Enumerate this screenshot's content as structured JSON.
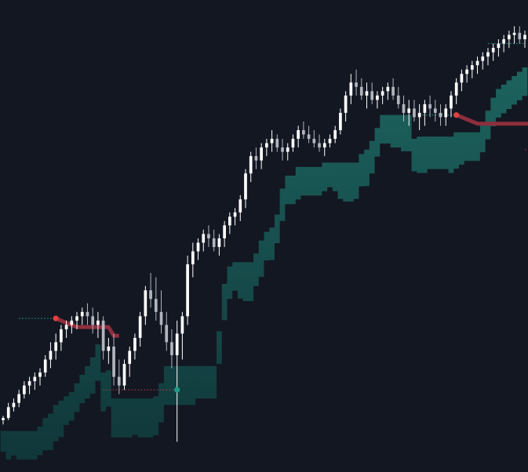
{
  "colors": {
    "background": "#131722",
    "candle_up": "#ffffff",
    "candle_down": "#b2b5be",
    "band_fill_top": "#1d6b64",
    "band_fill_bottom": "#103a3c",
    "resistance_line": "#8d2e3c",
    "resistance_dot": "#e0413f",
    "support_dot": "#1f9a86",
    "dotted_level": "#26a69a",
    "dotted_level_red": "#c2404a"
  },
  "chart_data": {
    "type": "candlestick",
    "title": "",
    "xlabel": "",
    "ylabel": "",
    "grid": false,
    "legend": "none",
    "ylim": [
      0,
      100
    ],
    "xlim": [
      0,
      139
    ],
    "candles": [
      [
        8,
        9,
        7,
        8.5
      ],
      [
        8.5,
        12,
        8,
        11
      ],
      [
        11,
        13,
        10,
        12
      ],
      [
        12,
        15,
        11,
        14
      ],
      [
        14,
        17,
        13,
        16
      ],
      [
        16,
        18,
        14,
        17
      ],
      [
        17,
        19,
        15,
        18
      ],
      [
        18,
        20,
        16,
        19
      ],
      [
        19,
        23,
        18,
        22
      ],
      [
        22,
        26,
        20,
        24
      ],
      [
        24,
        28,
        22,
        26
      ],
      [
        26,
        30,
        24,
        29
      ],
      [
        29,
        31,
        27,
        30
      ],
      [
        30,
        32,
        28,
        31
      ],
      [
        31,
        33,
        29,
        32
      ],
      [
        32,
        34,
        30,
        33
      ],
      [
        33,
        35,
        30,
        32
      ],
      [
        32,
        34,
        28,
        30
      ],
      [
        30,
        33,
        27,
        31
      ],
      [
        31,
        32,
        22,
        24
      ],
      [
        24,
        27,
        21,
        25
      ],
      [
        25,
        28,
        16,
        18
      ],
      [
        18,
        22,
        14,
        16
      ],
      [
        16,
        22,
        15,
        21
      ],
      [
        21,
        25,
        18,
        24
      ],
      [
        24,
        28,
        22,
        27
      ],
      [
        27,
        33,
        25,
        32
      ],
      [
        32,
        39,
        30,
        38
      ],
      [
        38,
        42,
        34,
        36
      ],
      [
        36,
        41,
        31,
        33
      ],
      [
        33,
        38,
        28,
        30
      ],
      [
        30,
        33,
        24,
        26
      ],
      [
        26,
        29,
        20,
        23
      ],
      [
        23,
        31,
        3,
        28
      ],
      [
        28,
        33,
        22,
        32
      ],
      [
        32,
        46,
        30,
        44
      ],
      [
        44,
        49,
        41,
        47
      ],
      [
        47,
        50,
        45,
        49
      ],
      [
        49,
        52,
        47,
        51
      ],
      [
        51,
        53,
        48,
        50
      ],
      [
        50,
        52,
        47,
        48
      ],
      [
        48,
        51,
        46,
        50
      ],
      [
        50,
        54,
        48,
        53
      ],
      [
        53,
        56,
        51,
        55
      ],
      [
        55,
        57,
        53,
        56
      ],
      [
        56,
        60,
        54,
        59
      ],
      [
        59,
        66,
        57,
        65
      ],
      [
        65,
        70,
        63,
        69
      ],
      [
        69,
        71,
        66,
        68
      ],
      [
        68,
        72,
        66,
        71
      ],
      [
        71,
        73,
        69,
        72
      ],
      [
        72,
        75,
        70,
        73
      ],
      [
        73,
        74,
        70,
        71
      ],
      [
        71,
        73,
        68,
        70
      ],
      [
        70,
        72,
        68,
        71
      ],
      [
        71,
        74,
        70,
        73
      ],
      [
        73,
        76,
        71,
        75
      ],
      [
        75,
        77,
        73,
        74
      ],
      [
        74,
        76,
        72,
        73
      ],
      [
        73,
        75,
        71,
        72
      ],
      [
        72,
        74,
        70,
        71
      ],
      [
        71,
        73,
        69,
        72
      ],
      [
        72,
        74,
        71,
        73
      ],
      [
        73,
        76,
        72,
        75
      ],
      [
        75,
        80,
        74,
        79
      ],
      [
        79,
        84,
        77,
        83
      ],
      [
        83,
        88,
        81,
        86
      ],
      [
        86,
        89,
        83,
        85
      ],
      [
        85,
        87,
        82,
        83
      ],
      [
        83,
        86,
        80,
        84
      ],
      [
        84,
        86,
        81,
        82
      ],
      [
        82,
        84,
        80,
        83
      ],
      [
        83,
        85,
        81,
        84
      ],
      [
        84,
        86,
        82,
        85
      ],
      [
        85,
        87,
        82,
        83
      ],
      [
        83,
        85,
        80,
        81
      ],
      [
        81,
        83,
        77,
        79
      ],
      [
        79,
        82,
        76,
        80
      ],
      [
        80,
        82,
        77,
        78
      ],
      [
        78,
        81,
        75,
        79
      ],
      [
        79,
        82,
        76,
        81
      ],
      [
        81,
        83,
        78,
        80
      ],
      [
        80,
        82,
        77,
        79
      ],
      [
        79,
        81,
        76,
        78
      ],
      [
        78,
        81,
        76,
        80
      ],
      [
        80,
        84,
        78,
        83
      ],
      [
        83,
        87,
        81,
        86
      ],
      [
        86,
        89,
        84,
        88
      ],
      [
        88,
        90,
        86,
        89
      ],
      [
        89,
        91,
        87,
        90
      ],
      [
        90,
        92,
        88,
        91
      ],
      [
        91,
        93,
        89,
        92
      ],
      [
        92,
        94,
        90,
        93
      ],
      [
        93,
        95,
        91,
        94
      ],
      [
        94,
        96,
        92,
        95
      ],
      [
        95,
        97,
        93,
        96
      ],
      [
        96,
        98,
        94,
        97
      ],
      [
        97,
        99,
        95,
        97.5
      ],
      [
        97.5,
        99,
        95,
        96
      ],
      [
        96,
        98,
        94,
        97
      ]
    ],
    "resistance_levels": [
      {
        "value": 31.5,
        "start": 10,
        "end": 22
      },
      {
        "value": 78.5,
        "start": 86,
        "end": 104
      }
    ],
    "support_levels": [
      {
        "value": 15,
        "start": 24,
        "end": 33
      },
      {
        "value": 70.5,
        "start": 104,
        "end": 118
      }
    ]
  }
}
